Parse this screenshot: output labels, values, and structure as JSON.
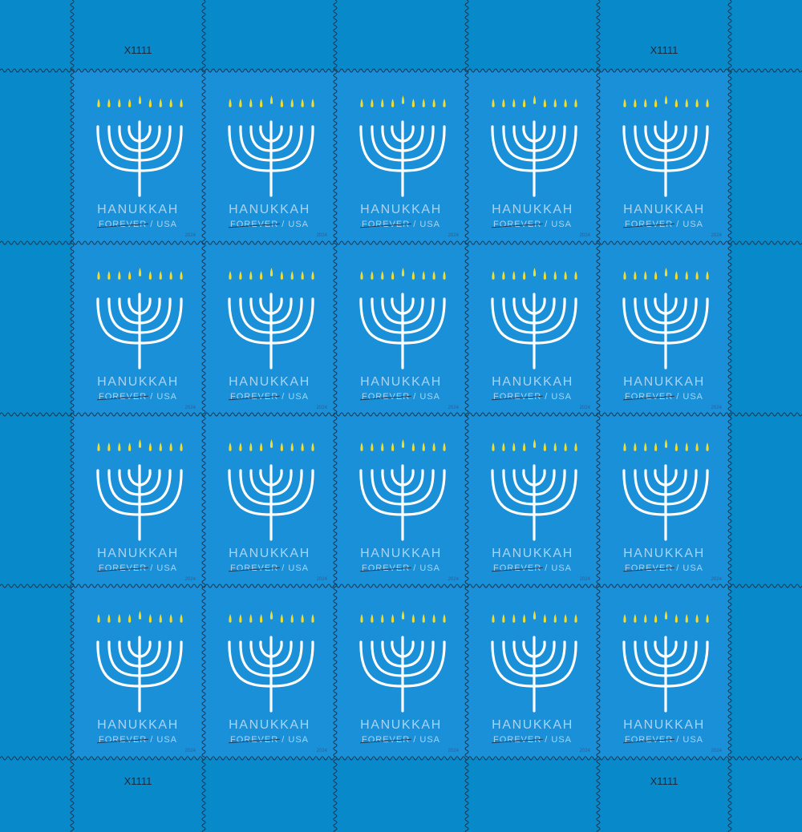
{
  "sheet": {
    "rows": 4,
    "columns": 5,
    "stamp": {
      "title": "HANUKKAH",
      "denomination": "FOREVER",
      "separator": "/",
      "country": "USA",
      "year": "2024",
      "flame_count": 9
    },
    "plate_numbers": [
      "X1111",
      "X1111",
      "X1111",
      "X1111"
    ],
    "colors": {
      "margin": "#0889ca",
      "stamp": "#1a90d8",
      "menorah": "#ffffff",
      "flame": "#f2dc2e",
      "text": "#a9d3f2",
      "perforation": "#1c3a55"
    }
  }
}
